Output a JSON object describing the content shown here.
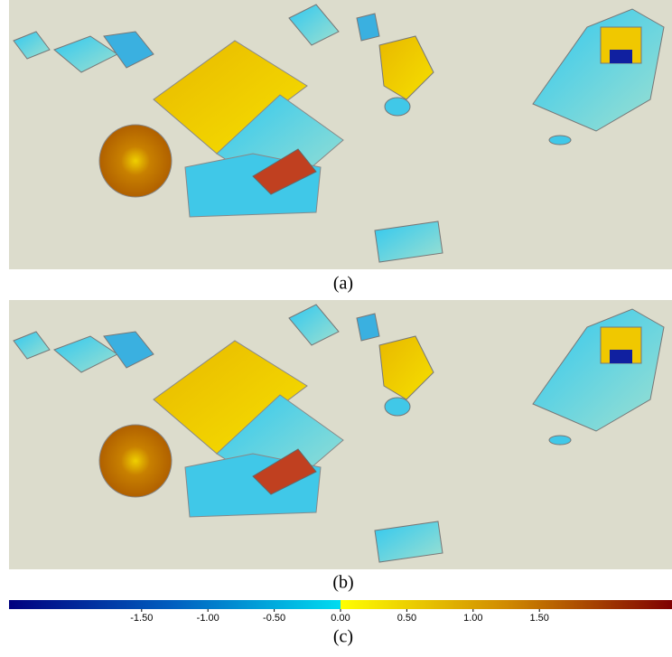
{
  "figure": {
    "panels": [
      {
        "caption": "(a)"
      },
      {
        "caption": "(b)"
      }
    ],
    "colorbar": {
      "caption": "(c)",
      "range": [
        -2.5,
        2.5
      ],
      "colors": [
        "#00007f",
        "#0060c0",
        "#00dcf0",
        "#ffff00",
        "#d08a00",
        "#7f0000"
      ],
      "ticks": [
        {
          "value": -1.5,
          "label": "-1.50"
        },
        {
          "value": -1.0,
          "label": "-1.00"
        },
        {
          "value": -0.5,
          "label": "-0.50"
        },
        {
          "value": 0,
          "label": "0.00"
        },
        {
          "value": 0.5,
          "label": "0.50"
        },
        {
          "value": 1.0,
          "label": "1.00"
        },
        {
          "value": 1.5,
          "label": "1.50"
        }
      ]
    }
  }
}
